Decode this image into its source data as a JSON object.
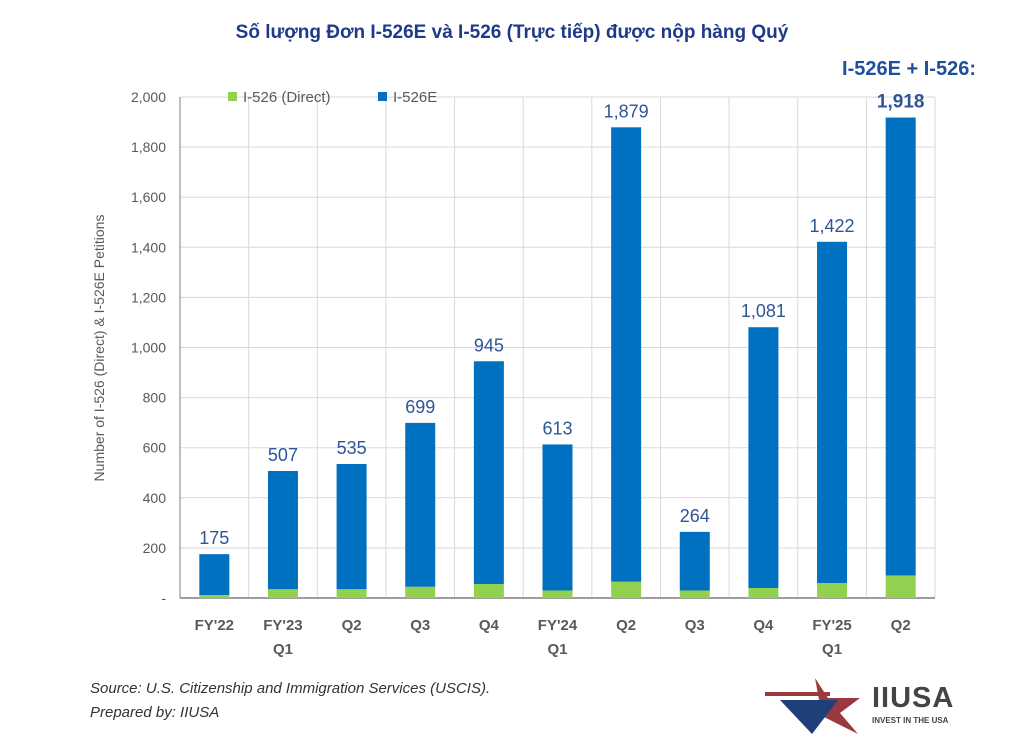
{
  "chart_data": {
    "type": "bar",
    "stacked": true,
    "title": "Số lượng Đơn I-526E và I-526 (Trực tiếp) được nộp hàng Quý",
    "annotation": "I-526E + I-526:",
    "ylabel": "Number of I-526 (Direct) & I-526E Petitions",
    "xlabel": "",
    "ylim": [
      0,
      2000
    ],
    "yticks": [
      "-",
      "200",
      "400",
      "600",
      "800",
      "1,000",
      "1,200",
      "1,400",
      "1,600",
      "1,800",
      "2,000"
    ],
    "grid": true,
    "legend_placement": "top-left",
    "categories": [
      [
        "FY'22"
      ],
      [
        "FY'23",
        "Q1"
      ],
      [
        "Q2"
      ],
      [
        "Q3"
      ],
      [
        "Q4"
      ],
      [
        "FY'24",
        "Q1"
      ],
      [
        "Q2"
      ],
      [
        "Q3"
      ],
      [
        "Q4"
      ],
      [
        "FY'25",
        "Q1"
      ],
      [
        "Q2"
      ]
    ],
    "totals": [
      175,
      507,
      535,
      699,
      945,
      613,
      1879,
      264,
      1081,
      1422,
      1918
    ],
    "total_labels": [
      "175",
      "507",
      "535",
      "699",
      "945",
      "613",
      "1,879",
      "264",
      "1,081",
      "1,422",
      "1,918"
    ],
    "series": [
      {
        "name": "I-526 (Direct)",
        "color": "#92d050",
        "values": [
          12,
          35,
          35,
          45,
          56,
          30,
          65,
          30,
          40,
          60,
          90
        ]
      },
      {
        "name": "I-526E",
        "color": "#0070c0",
        "values": [
          163,
          472,
          500,
          654,
          889,
          583,
          1814,
          234,
          1041,
          1362,
          1828
        ]
      }
    ]
  },
  "source": "Source: U.S. Citizenship and Immigration Services (USCIS).",
  "prepared": "Prepared by: IIUSA",
  "logo": {
    "name": "IIUSA",
    "tagline": "INVEST IN THE USA"
  }
}
